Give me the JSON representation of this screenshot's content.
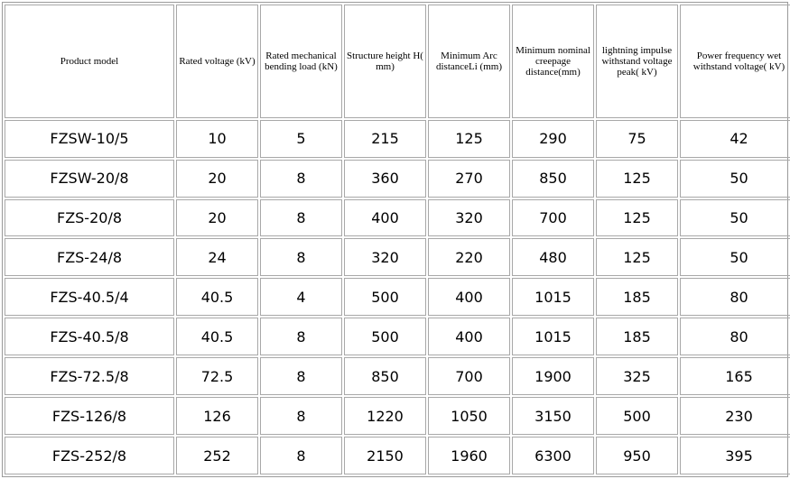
{
  "table": {
    "headers": [
      "Product model",
      "Rated voltage (kV)",
      "Rated mechanical bending load (kN)",
      "Structure height H( mm)",
      "Minimum Arc distanceLi (mm)",
      "Minimum nominal creepage distance(mm)",
      "lightning impulse withstand voltage peak( kV)",
      "Power frequency wet withstand voltage( kV)"
    ],
    "rows": [
      [
        "FZSW-10/5",
        "10",
        "5",
        "215",
        "125",
        "290",
        "75",
        "42"
      ],
      [
        "FZSW-20/8",
        "20",
        "8",
        "360",
        "270",
        "850",
        "125",
        "50"
      ],
      [
        "FZS-20/8",
        "20",
        "8",
        "400",
        "320",
        "700",
        "125",
        "50"
      ],
      [
        "FZS-24/8",
        "24",
        "8",
        "320",
        "220",
        "480",
        "125",
        "50"
      ],
      [
        "FZS-40.5/4",
        "40.5",
        "4",
        "500",
        "400",
        "1015",
        "185",
        "80"
      ],
      [
        "FZS-40.5/8",
        "40.5",
        "8",
        "500",
        "400",
        "1015",
        "185",
        "80"
      ],
      [
        "FZS-72.5/8",
        "72.5",
        "8",
        "850",
        "700",
        "1900",
        "325",
        "165"
      ],
      [
        "FZS-126/8",
        "126",
        "8",
        "1220",
        "1050",
        "3150",
        "500",
        "230"
      ],
      [
        "FZS-252/8",
        "252",
        "8",
        "2150",
        "1960",
        "6300",
        "950",
        "395"
      ]
    ]
  }
}
